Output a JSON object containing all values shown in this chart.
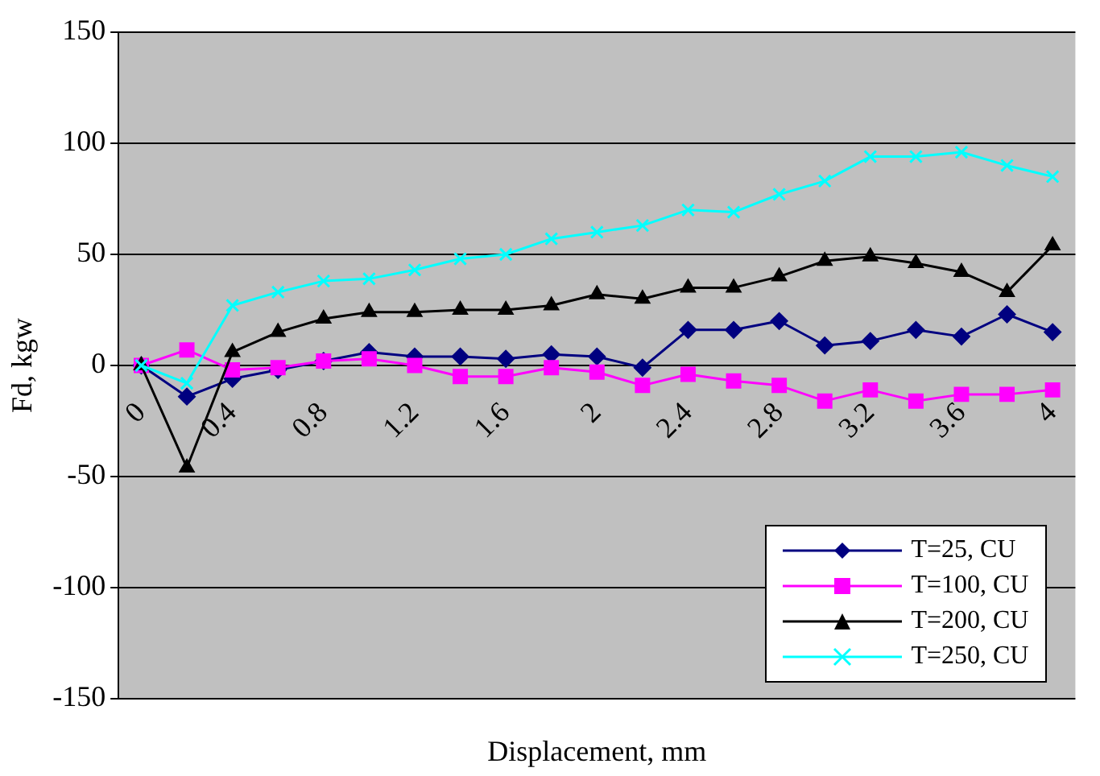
{
  "chart_data": {
    "type": "line",
    "xlabel": "Displacement, mm",
    "ylabel": "Fd, kgw",
    "categories": [
      "0",
      null,
      "0.4",
      null,
      "0.8",
      null,
      "1.2",
      null,
      "1.6",
      null,
      "2",
      null,
      "2.4",
      null,
      "2.8",
      null,
      "3.2",
      null,
      "3.6",
      null,
      "4"
    ],
    "series": [
      {
        "name": "T=25, CU",
        "color": "#000080",
        "marker": "diamond",
        "values": [
          0,
          -14,
          -6,
          -2,
          2,
          6,
          4,
          4,
          3,
          5,
          4,
          -1,
          16,
          16,
          20,
          9,
          11,
          16,
          13,
          23,
          15
        ]
      },
      {
        "name": "T=100, CU",
        "color": "#ff00ff",
        "marker": "square",
        "values": [
          0,
          7,
          -2,
          -1,
          2,
          3,
          0,
          -5,
          -5,
          -1,
          -3,
          -9,
          -4,
          -7,
          -9,
          -16,
          -11,
          -16,
          -13,
          -13,
          -11
        ]
      },
      {
        "name": "T=200, CU",
        "color": "#000000",
        "marker": "triangle",
        "values": [
          0,
          -46,
          6,
          15,
          21,
          24,
          24,
          25,
          25,
          27,
          32,
          30,
          35,
          35,
          40,
          47,
          49,
          46,
          42,
          33,
          54
        ]
      },
      {
        "name": "T=250, CU",
        "color": "#00ffff",
        "marker": "cross",
        "values": [
          0,
          -8,
          27,
          33,
          38,
          39,
          43,
          48,
          50,
          57,
          60,
          63,
          70,
          69,
          77,
          83,
          94,
          94,
          96,
          90,
          85
        ]
      }
    ],
    "ylim": [
      -150,
      150
    ],
    "yticks": [
      -150,
      -100,
      -50,
      0,
      50,
      100,
      150
    ],
    "grid": "y",
    "legend": "bottom right"
  }
}
